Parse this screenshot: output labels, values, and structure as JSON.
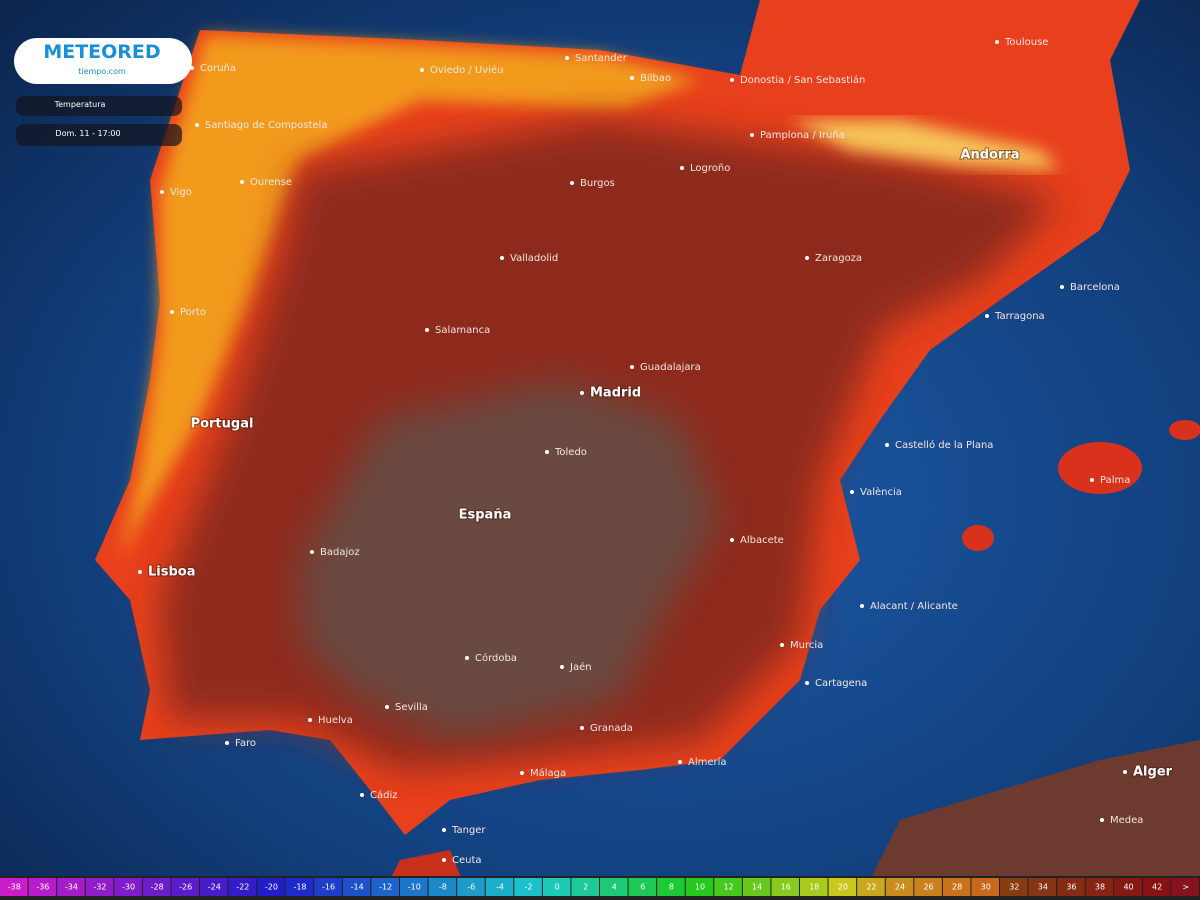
{
  "header": {
    "logo": "METEORED",
    "logo_sub": "tiempo.com",
    "layer": "Temperatura",
    "time": "Dom. 11 - 17:00"
  },
  "countries": [
    "Portugal",
    "España",
    "Andorra"
  ],
  "cities": [
    "Coruña",
    "Oviedo / Uviéu",
    "Santander",
    "Bilbao",
    "Donostia / San Sebastián",
    "Toulouse",
    "Santiago de Compostela",
    "Ourense",
    "Pamplona / Iruña",
    "Logroño",
    "Burgos",
    "Vigo",
    "Valladolid",
    "Zaragoza",
    "Barcelona",
    "Porto",
    "Salamanca",
    "Tarragona",
    "Guadalajara",
    "Madrid",
    "Castelló de la Plana",
    "Toledo",
    "València",
    "Palma",
    "Lisboa",
    "Badajoz",
    "Albacete",
    "Alacant / Alicante",
    "Murcia",
    "Córdoba",
    "Jaén",
    "Cartagena",
    "Sevilla",
    "Huelva",
    "Granada",
    "Faro",
    "Almería",
    "Málaga",
    "Cádiz",
    "Tanger",
    "Ceuta",
    "Alger",
    "Medea"
  ],
  "legend": {
    "labels": [
      "-38",
      "-36",
      "-34",
      "-32",
      "-30",
      "-28",
      "-26",
      "-24",
      "-22",
      "-20",
      "-18",
      "-16",
      "-14",
      "-12",
      "-10",
      "-8",
      "-6",
      "-4",
      "-2",
      "0",
      "2",
      "4",
      "6",
      "8",
      "10",
      "12",
      "14",
      "16",
      "18",
      "20",
      "22",
      "24",
      "26",
      "28",
      "30",
      "32",
      "34",
      "36",
      "38",
      "40",
      "42",
      ">"
    ]
  }
}
